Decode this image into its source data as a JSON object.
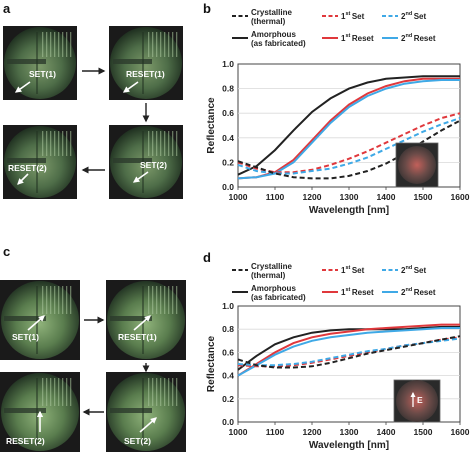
{
  "panels": {
    "a": "a",
    "b": "b",
    "c": "c",
    "d": "d"
  },
  "image_labels": {
    "a": [
      "SET(1)",
      "RESET(1)",
      "SET(2)",
      "RESET(2)"
    ],
    "c": [
      "SET(1)",
      "RESET(1)",
      "SET(2)",
      "RESET(2)"
    ]
  },
  "inset_labels": {
    "d": "E"
  },
  "legend": {
    "entries": [
      {
        "key": "crystalline",
        "line1": "Crystalline",
        "line2": "(thermal)",
        "color": "#222222",
        "dash": true
      },
      {
        "key": "amorphous",
        "line1": "Amorphous",
        "line2": "(as fabricated)",
        "color": "#222222",
        "dash": false
      },
      {
        "key": "set1",
        "label": "Set",
        "prefix": "1",
        "sup": "st",
        "color": "#e0383c",
        "dash": true
      },
      {
        "key": "reset1",
        "label": "Reset",
        "prefix": "1",
        "sup": "st",
        "color": "#e0383c",
        "dash": false
      },
      {
        "key": "set2",
        "label": "Set",
        "prefix": "2",
        "sup": "nd",
        "color": "#3fa9e6",
        "dash": true
      },
      {
        "key": "reset2",
        "label": "Reset",
        "prefix": "2",
        "sup": "nd",
        "color": "#3fa9e6",
        "dash": false
      }
    ]
  },
  "chart_data": [
    {
      "panel": "b",
      "type": "line",
      "xlabel": "Wavelength [nm]",
      "ylabel": "Reflectance",
      "xlim": [
        1000,
        1600
      ],
      "ylim": [
        0,
        1
      ],
      "xticks": [
        "1000",
        "1100",
        "1200",
        "1300",
        "1400",
        "1500",
        "1600"
      ],
      "yticks": [
        "0.0",
        "0.2",
        "0.4",
        "0.6",
        "0.8",
        "1.0"
      ],
      "series": [
        {
          "key": "amorphous",
          "x": [
            1000,
            1050,
            1100,
            1150,
            1200,
            1250,
            1300,
            1350,
            1400,
            1450,
            1500,
            1550,
            1600
          ],
          "y": [
            0.1,
            0.17,
            0.3,
            0.46,
            0.61,
            0.72,
            0.8,
            0.85,
            0.88,
            0.89,
            0.9,
            0.9,
            0.9
          ]
        },
        {
          "key": "reset1",
          "x": [
            1000,
            1050,
            1100,
            1150,
            1200,
            1250,
            1300,
            1350,
            1400,
            1450,
            1500,
            1550,
            1600
          ],
          "y": [
            0.07,
            0.08,
            0.12,
            0.22,
            0.38,
            0.54,
            0.67,
            0.76,
            0.82,
            0.86,
            0.88,
            0.88,
            0.88
          ]
        },
        {
          "key": "reset2",
          "x": [
            1000,
            1050,
            1100,
            1150,
            1200,
            1250,
            1300,
            1350,
            1400,
            1450,
            1500,
            1550,
            1600
          ],
          "y": [
            0.07,
            0.08,
            0.11,
            0.2,
            0.36,
            0.52,
            0.65,
            0.74,
            0.8,
            0.84,
            0.86,
            0.87,
            0.87
          ]
        },
        {
          "key": "set1",
          "x": [
            1000,
            1050,
            1100,
            1150,
            1200,
            1250,
            1300,
            1350,
            1400,
            1450,
            1500,
            1550,
            1600
          ],
          "y": [
            0.2,
            0.15,
            0.12,
            0.12,
            0.14,
            0.18,
            0.23,
            0.29,
            0.36,
            0.43,
            0.5,
            0.56,
            0.6
          ]
        },
        {
          "key": "set2",
          "x": [
            1000,
            1050,
            1100,
            1150,
            1200,
            1250,
            1300,
            1350,
            1400,
            1450,
            1500,
            1550,
            1600
          ],
          "y": [
            0.18,
            0.13,
            0.11,
            0.11,
            0.13,
            0.15,
            0.19,
            0.24,
            0.31,
            0.38,
            0.45,
            0.51,
            0.56
          ]
        },
        {
          "key": "crystalline",
          "x": [
            1000,
            1050,
            1100,
            1150,
            1200,
            1250,
            1300,
            1350,
            1400,
            1450,
            1500,
            1550,
            1600
          ],
          "y": [
            0.21,
            0.16,
            0.11,
            0.08,
            0.07,
            0.07,
            0.09,
            0.13,
            0.19,
            0.27,
            0.37,
            0.46,
            0.54
          ]
        }
      ]
    },
    {
      "panel": "d",
      "type": "line",
      "xlabel": "Wavelength [nm]",
      "ylabel": "Reflectance",
      "xlim": [
        1000,
        1600
      ],
      "ylim": [
        0,
        1
      ],
      "xticks": [
        "1000",
        "1100",
        "1200",
        "1300",
        "1400",
        "1500",
        "1600"
      ],
      "yticks": [
        "0.0",
        "0.2",
        "0.4",
        "0.6",
        "0.8",
        "1.0"
      ],
      "series": [
        {
          "key": "amorphous",
          "x": [
            1000,
            1050,
            1100,
            1150,
            1200,
            1250,
            1300,
            1350,
            1400,
            1450,
            1500,
            1550,
            1600
          ],
          "y": [
            0.45,
            0.57,
            0.67,
            0.73,
            0.77,
            0.79,
            0.8,
            0.8,
            0.8,
            0.8,
            0.81,
            0.82,
            0.82
          ]
        },
        {
          "key": "reset1",
          "x": [
            1000,
            1050,
            1100,
            1150,
            1200,
            1250,
            1300,
            1350,
            1400,
            1450,
            1500,
            1550,
            1600
          ],
          "y": [
            0.4,
            0.5,
            0.6,
            0.68,
            0.73,
            0.76,
            0.78,
            0.8,
            0.81,
            0.82,
            0.83,
            0.84,
            0.84
          ]
        },
        {
          "key": "reset2",
          "x": [
            1000,
            1050,
            1100,
            1150,
            1200,
            1250,
            1300,
            1350,
            1400,
            1450,
            1500,
            1550,
            1600
          ],
          "y": [
            0.4,
            0.49,
            0.58,
            0.65,
            0.7,
            0.73,
            0.75,
            0.77,
            0.78,
            0.79,
            0.8,
            0.81,
            0.81
          ]
        },
        {
          "key": "set1",
          "x": [
            1000,
            1050,
            1100,
            1150,
            1200,
            1250,
            1300,
            1350,
            1400,
            1450,
            1500,
            1550,
            1600
          ],
          "y": [
            0.49,
            0.48,
            0.48,
            0.49,
            0.51,
            0.54,
            0.57,
            0.6,
            0.63,
            0.66,
            0.68,
            0.71,
            0.73
          ]
        },
        {
          "key": "set2",
          "x": [
            1000,
            1050,
            1100,
            1150,
            1200,
            1250,
            1300,
            1350,
            1400,
            1450,
            1500,
            1550,
            1600
          ],
          "y": [
            0.5,
            0.49,
            0.49,
            0.5,
            0.52,
            0.55,
            0.58,
            0.61,
            0.63,
            0.66,
            0.68,
            0.7,
            0.72
          ]
        },
        {
          "key": "crystalline",
          "x": [
            1000,
            1050,
            1100,
            1150,
            1200,
            1250,
            1300,
            1350,
            1400,
            1450,
            1500,
            1550,
            1600
          ],
          "y": [
            0.54,
            0.49,
            0.47,
            0.47,
            0.48,
            0.51,
            0.55,
            0.59,
            0.62,
            0.65,
            0.68,
            0.71,
            0.74
          ]
        }
      ]
    }
  ]
}
